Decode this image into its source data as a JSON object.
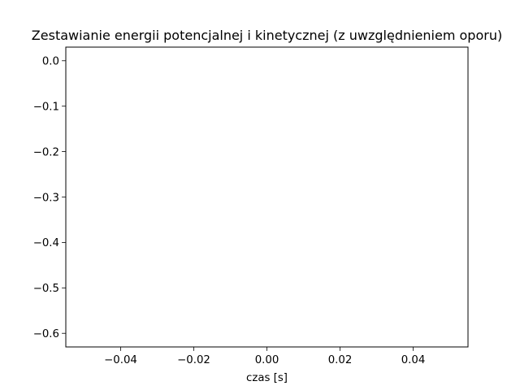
{
  "chart_data": {
    "type": "line",
    "title": "Zestawianie energii potencjalnej i kinetycznej (z uwzględnieniem oporu)",
    "xlabel": "czas [s]",
    "ylabel": "",
    "xlim": [
      -0.055,
      0.055
    ],
    "ylim": [
      -0.63,
      0.03
    ],
    "xticks": [
      {
        "value": -0.04,
        "label": "−0.04"
      },
      {
        "value": -0.02,
        "label": "−0.02"
      },
      {
        "value": 0.0,
        "label": "0.00"
      },
      {
        "value": 0.02,
        "label": "0.02"
      },
      {
        "value": 0.04,
        "label": "0.04"
      }
    ],
    "yticks": [
      {
        "value": 0.0,
        "label": "0.0"
      },
      {
        "value": -0.1,
        "label": "−0.1"
      },
      {
        "value": -0.2,
        "label": "−0.2"
      },
      {
        "value": -0.3,
        "label": "−0.3"
      },
      {
        "value": -0.4,
        "label": "−0.4"
      },
      {
        "value": -0.5,
        "label": "−0.5"
      },
      {
        "value": -0.6,
        "label": "−0.6"
      }
    ],
    "series": [],
    "grid": false,
    "legend": "none"
  }
}
